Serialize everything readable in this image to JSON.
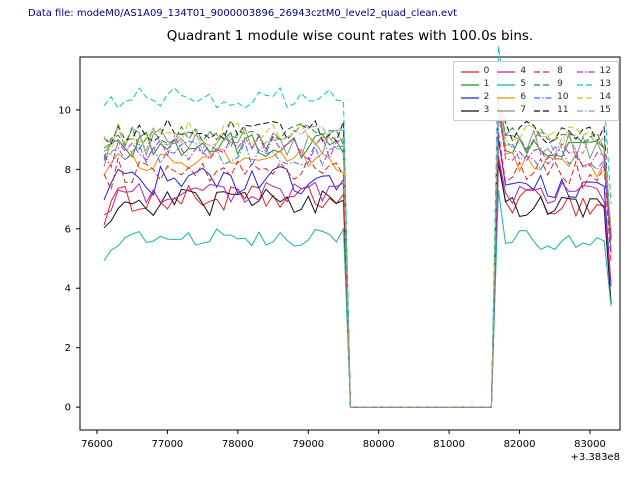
{
  "header": {
    "datafile": "Data file: modeM0/AS1A09_134T01_9000003896_26943cztM0_level2_quad_clean.evt",
    "color": "#000080"
  },
  "chart_data": {
    "type": "line",
    "title": "Quadrant 1 module wise count rates with 100.0s bins.",
    "xlabel": "",
    "ylabel": "",
    "x_offset_label": "+3.383e8",
    "x_ticks": [
      76000,
      77000,
      78000,
      79000,
      80000,
      81000,
      82000,
      83000
    ],
    "y_ticks": [
      0,
      2,
      4,
      6,
      8,
      10
    ],
    "xlim": [
      75759,
      83426
    ],
    "ylim": [
      -0.77,
      11.78
    ],
    "bin_seconds": 100,
    "x_start": 76100,
    "x_end": 83300,
    "gap_interval": [
      79600,
      81600
    ],
    "gap_value": 0,
    "spike_x": 81700,
    "spike_boost": 1.1,
    "end_drop_min": 3.4,
    "grid": false,
    "legend_position": "upper right",
    "legend_columns": 4,
    "series": [
      {
        "name": "0",
        "color": "#e02222",
        "dash": "solid",
        "level": 7.0,
        "amp": 0.45
      },
      {
        "name": "1",
        "color": "#1f8f1f",
        "dash": "solid",
        "level": 8.8,
        "amp": 0.45
      },
      {
        "name": "2",
        "color": "#2222dd",
        "dash": "solid",
        "level": 7.6,
        "amp": 0.5
      },
      {
        "name": "3",
        "color": "#111111",
        "dash": "solid",
        "level": 6.9,
        "amp": 0.45
      },
      {
        "name": "4",
        "color": "#bb22bb",
        "dash": "solid",
        "level": 7.3,
        "amp": 0.45
      },
      {
        "name": "5",
        "color": "#18b0a8",
        "dash": "solid",
        "level": 5.7,
        "amp": 0.3
      },
      {
        "name": "6",
        "color": "#ff8800",
        "dash": "solid",
        "level": 8.3,
        "amp": 0.45
      },
      {
        "name": "7",
        "color": "#8c8c8c",
        "dash": "solid",
        "level": 8.9,
        "amp": 0.5
      },
      {
        "name": "8",
        "color": "#e02222",
        "dash": "dashed",
        "level": 8.0,
        "amp": 0.45
      },
      {
        "name": "9",
        "color": "#1f8f1f",
        "dash": "dashed",
        "level": 9.1,
        "amp": 0.45
      },
      {
        "name": "10",
        "color": "#3a6fff",
        "dash": "dashdot",
        "level": 8.5,
        "amp": 0.45
      },
      {
        "name": "11",
        "color": "#111111",
        "dash": "dashed",
        "level": 9.3,
        "amp": 0.4
      },
      {
        "name": "12",
        "color": "#cc22cc",
        "dash": "dashdot",
        "level": 8.7,
        "amp": 0.45
      },
      {
        "name": "13",
        "color": "#00c8d0",
        "dash": "dashed",
        "level": 10.4,
        "amp": 0.35
      },
      {
        "name": "14",
        "color": "#c8c822",
        "dash": "dashed",
        "level": 9.2,
        "amp": 0.45
      },
      {
        "name": "15",
        "color": "#9a9a9a",
        "dash": "dashdot",
        "level": 9.0,
        "amp": 0.45
      }
    ]
  }
}
